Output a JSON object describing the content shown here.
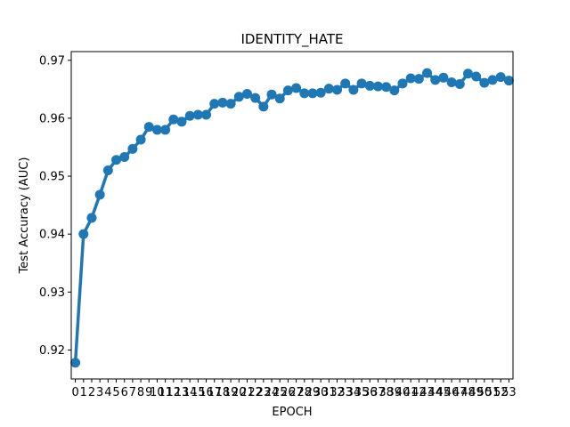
{
  "chart_data": {
    "type": "line",
    "title": "IDENTITY_HATE",
    "xlabel": "EPOCH",
    "ylabel": "Test Accuracy (AUC)",
    "categories": [
      "0",
      "1",
      "2",
      "3",
      "4",
      "5",
      "6",
      "7",
      "8",
      "9",
      "10",
      "11",
      "12",
      "13",
      "14",
      "15",
      "16",
      "17",
      "18",
      "19",
      "20",
      "21",
      "22",
      "23",
      "24",
      "25",
      "26",
      "27",
      "28",
      "29",
      "30",
      "31",
      "32",
      "33",
      "34",
      "35",
      "36",
      "37",
      "38",
      "39",
      "40",
      "41",
      "42",
      "43",
      "44",
      "45",
      "46",
      "47",
      "48",
      "49",
      "50",
      "51",
      "52",
      "53"
    ],
    "series": [
      {
        "color": "#1f77b4",
        "values": [
          0.9178,
          0.94,
          0.9428,
          0.9468,
          0.951,
          0.9528,
          0.9533,
          0.9547,
          0.9563,
          0.9585,
          0.958,
          0.958,
          0.9598,
          0.9594,
          0.9604,
          0.9606,
          0.9606,
          0.9625,
          0.9627,
          0.9625,
          0.9637,
          0.9642,
          0.9635,
          0.962,
          0.9641,
          0.9634,
          0.9648,
          0.9652,
          0.9643,
          0.9643,
          0.9644,
          0.9651,
          0.9649,
          0.966,
          0.9649,
          0.966,
          0.9656,
          0.9655,
          0.9654,
          0.9648,
          0.966,
          0.9669,
          0.9668,
          0.9678,
          0.9666,
          0.967,
          0.9662,
          0.9659,
          0.9677,
          0.9672,
          0.9661,
          0.9666,
          0.9671,
          0.9665
        ]
      }
    ],
    "ylim": [
      0.915,
      0.9715
    ],
    "yticks": [
      "0.92",
      "0.93",
      "0.94",
      "0.95",
      "0.96",
      "0.97"
    ],
    "grid": false,
    "legend": "none"
  }
}
